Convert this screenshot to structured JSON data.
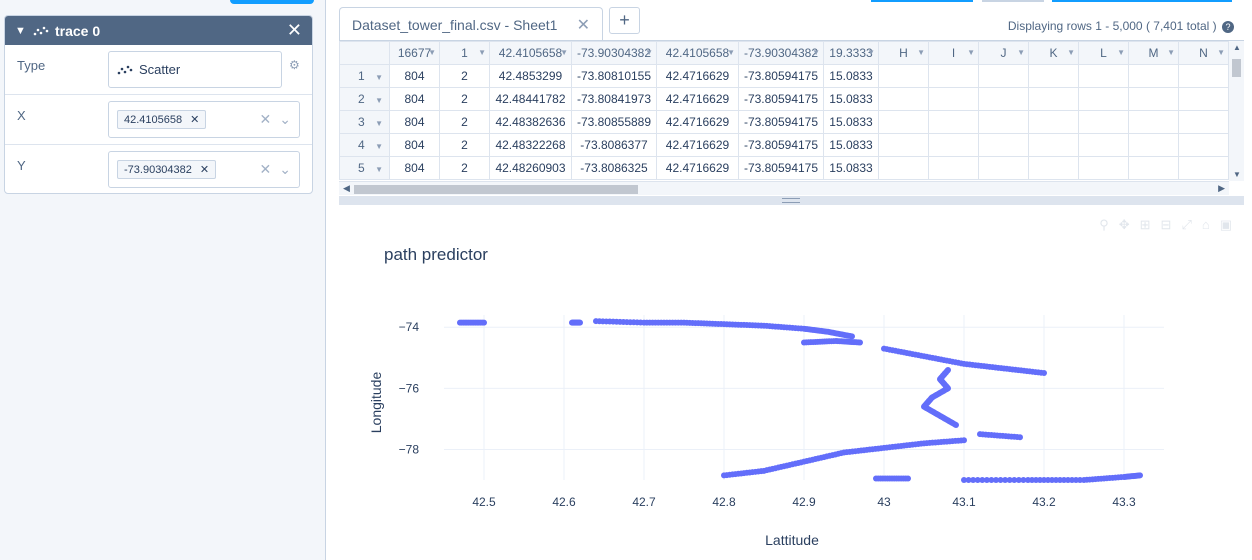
{
  "trace_panel": {
    "title": "trace 0",
    "fields": {
      "type_label": "Type",
      "type_value": "Scatter",
      "x_label": "X",
      "x_value": "42.4105658",
      "y_label": "Y",
      "y_value": "-73.90304382"
    }
  },
  "sheet": {
    "tab_name": "Dataset_tower_final.csv - Sheet1",
    "display_rows": "Displaying rows 1 - 5,000 ( 7,401 total )",
    "headers": [
      "16677",
      "1",
      "42.4105658",
      "-73.90304382",
      "42.4105658",
      "-73.90304382",
      "19.3333",
      "H",
      "I",
      "J",
      "K",
      "L",
      "M",
      "N"
    ],
    "rows": [
      {
        "num": "1",
        "cells": [
          "804",
          "2",
          "42.4853299",
          "-73.80810155",
          "42.4716629",
          "-73.80594175",
          "15.0833",
          "",
          "",
          "",
          "",
          "",
          "",
          ""
        ]
      },
      {
        "num": "2",
        "cells": [
          "804",
          "2",
          "42.48441782",
          "-73.80841973",
          "42.4716629",
          "-73.80594175",
          "15.0833",
          "",
          "",
          "",
          "",
          "",
          "",
          ""
        ]
      },
      {
        "num": "3",
        "cells": [
          "804",
          "2",
          "42.48382636",
          "-73.80855889",
          "42.4716629",
          "-73.80594175",
          "15.0833",
          "",
          "",
          "",
          "",
          "",
          "",
          ""
        ]
      },
      {
        "num": "4",
        "cells": [
          "804",
          "2",
          "42.48322268",
          "-73.8086377",
          "42.4716629",
          "-73.80594175",
          "15.0833",
          "",
          "",
          "",
          "",
          "",
          "",
          ""
        ]
      },
      {
        "num": "5",
        "cells": [
          "804",
          "2",
          "42.48260903",
          "-73.8086325",
          "42.4716629",
          "-73.80594175",
          "15.0833",
          "",
          "",
          "",
          "",
          "",
          "",
          ""
        ]
      }
    ]
  },
  "colors": {
    "marker": "#636efa",
    "header_bg": "#506784"
  },
  "chart_data": {
    "type": "scatter",
    "title": "path predictor",
    "xlabel": "Lattitude",
    "ylabel": "Longitude",
    "xlim": [
      42.45,
      43.35
    ],
    "ylim": [
      -79.0,
      -73.6
    ],
    "xticks": [
      42.5,
      42.6,
      42.7,
      42.8,
      42.9,
      43.0,
      43.1,
      43.2,
      43.3
    ],
    "xtick_labels": [
      "42.5",
      "42.6",
      "42.7",
      "42.8",
      "42.9",
      "43",
      "43.1",
      "43.2",
      "43.3"
    ],
    "yticks": [
      -74,
      -76,
      -78
    ],
    "ytick_labels": [
      "−74",
      "−76",
      "−78"
    ],
    "series": [
      {
        "segments": [
          [
            [
              42.47,
              -73.85
            ],
            [
              42.5,
              -73.85
            ]
          ],
          [
            [
              42.61,
              -73.85
            ],
            [
              42.62,
              -73.85
            ]
          ],
          [
            [
              42.64,
              -73.8
            ],
            [
              42.7,
              -73.85
            ],
            [
              42.75,
              -73.85
            ],
            [
              42.8,
              -73.9
            ],
            [
              42.85,
              -73.95
            ],
            [
              42.9,
              -74.05
            ],
            [
              42.93,
              -74.15
            ],
            [
              42.96,
              -74.3
            ]
          ],
          [
            [
              42.9,
              -74.5
            ],
            [
              42.94,
              -74.45
            ],
            [
              42.97,
              -74.5
            ]
          ],
          [
            [
              43.0,
              -74.7
            ],
            [
              43.05,
              -74.95
            ],
            [
              43.1,
              -75.2
            ],
            [
              43.15,
              -75.35
            ],
            [
              43.2,
              -75.5
            ]
          ],
          [
            [
              43.08,
              -75.4
            ],
            [
              43.07,
              -75.7
            ],
            [
              43.08,
              -76.0
            ],
            [
              43.06,
              -76.3
            ],
            [
              43.05,
              -76.6
            ],
            [
              43.07,
              -76.9
            ],
            [
              43.09,
              -77.2
            ]
          ],
          [
            [
              43.12,
              -77.5
            ],
            [
              43.17,
              -77.6
            ]
          ],
          [
            [
              43.1,
              -77.7
            ],
            [
              43.05,
              -77.8
            ],
            [
              43.0,
              -77.95
            ],
            [
              42.95,
              -78.1
            ],
            [
              42.9,
              -78.4
            ],
            [
              42.85,
              -78.7
            ],
            [
              42.8,
              -78.85
            ]
          ],
          [
            [
              42.99,
              -78.95
            ],
            [
              43.03,
              -78.95
            ]
          ],
          [
            [
              43.1,
              -79.0
            ],
            [
              43.18,
              -79.0
            ],
            [
              43.25,
              -79.0
            ],
            [
              43.3,
              -78.9
            ],
            [
              43.32,
              -78.85
            ]
          ]
        ]
      }
    ]
  }
}
